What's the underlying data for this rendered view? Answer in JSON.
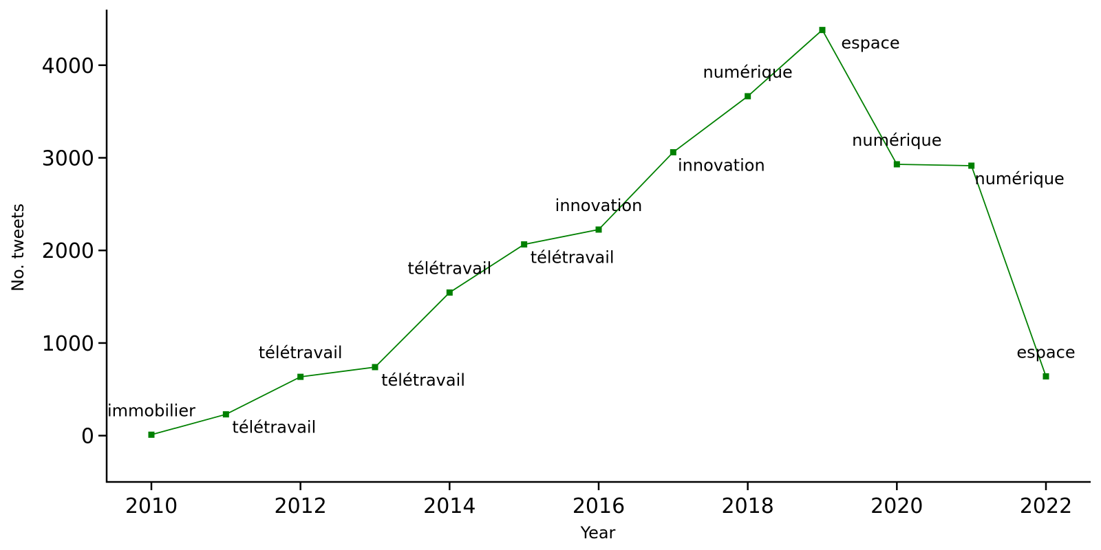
{
  "chart_data": {
    "type": "line",
    "title": "",
    "xlabel": "Year",
    "ylabel": "No. tweets",
    "xlim": [
      2009.4,
      2022.6
    ],
    "ylim": [
      -500,
      4600
    ],
    "xticks": [
      2010,
      2012,
      2014,
      2016,
      2018,
      2020,
      2022
    ],
    "yticks": [
      0,
      1000,
      2000,
      3000,
      4000
    ],
    "grid": false,
    "series": [
      {
        "color": "#008000",
        "marker": "square",
        "points": [
          {
            "x": 2010,
            "y": 10,
            "label": "immobilier",
            "label_pos": "above"
          },
          {
            "x": 2011,
            "y": 230,
            "label": "télétravail",
            "label_pos": "below"
          },
          {
            "x": 2012,
            "y": 635,
            "label": "télétravail",
            "label_pos": "above"
          },
          {
            "x": 2013,
            "y": 740,
            "label": "télétravail",
            "label_pos": "below"
          },
          {
            "x": 2014,
            "y": 1545,
            "label": "télétravail",
            "label_pos": "above"
          },
          {
            "x": 2015,
            "y": 2065,
            "label": "télétravail",
            "label_pos": "below"
          },
          {
            "x": 2016,
            "y": 2225,
            "label": "innovation",
            "label_pos": "above"
          },
          {
            "x": 2017,
            "y": 3060,
            "label": "innovation",
            "label_pos": "below"
          },
          {
            "x": 2018,
            "y": 3665,
            "label": "numérique",
            "label_pos": "above"
          },
          {
            "x": 2019,
            "y": 4380,
            "label": "espace",
            "label_pos": "below"
          },
          {
            "x": 2020,
            "y": 2930,
            "label": "numérique",
            "label_pos": "above"
          },
          {
            "x": 2021,
            "y": 2915,
            "label": "numérique",
            "label_pos": "below"
          },
          {
            "x": 2022,
            "y": 640,
            "label": "espace",
            "label_pos": "above"
          }
        ]
      }
    ]
  }
}
